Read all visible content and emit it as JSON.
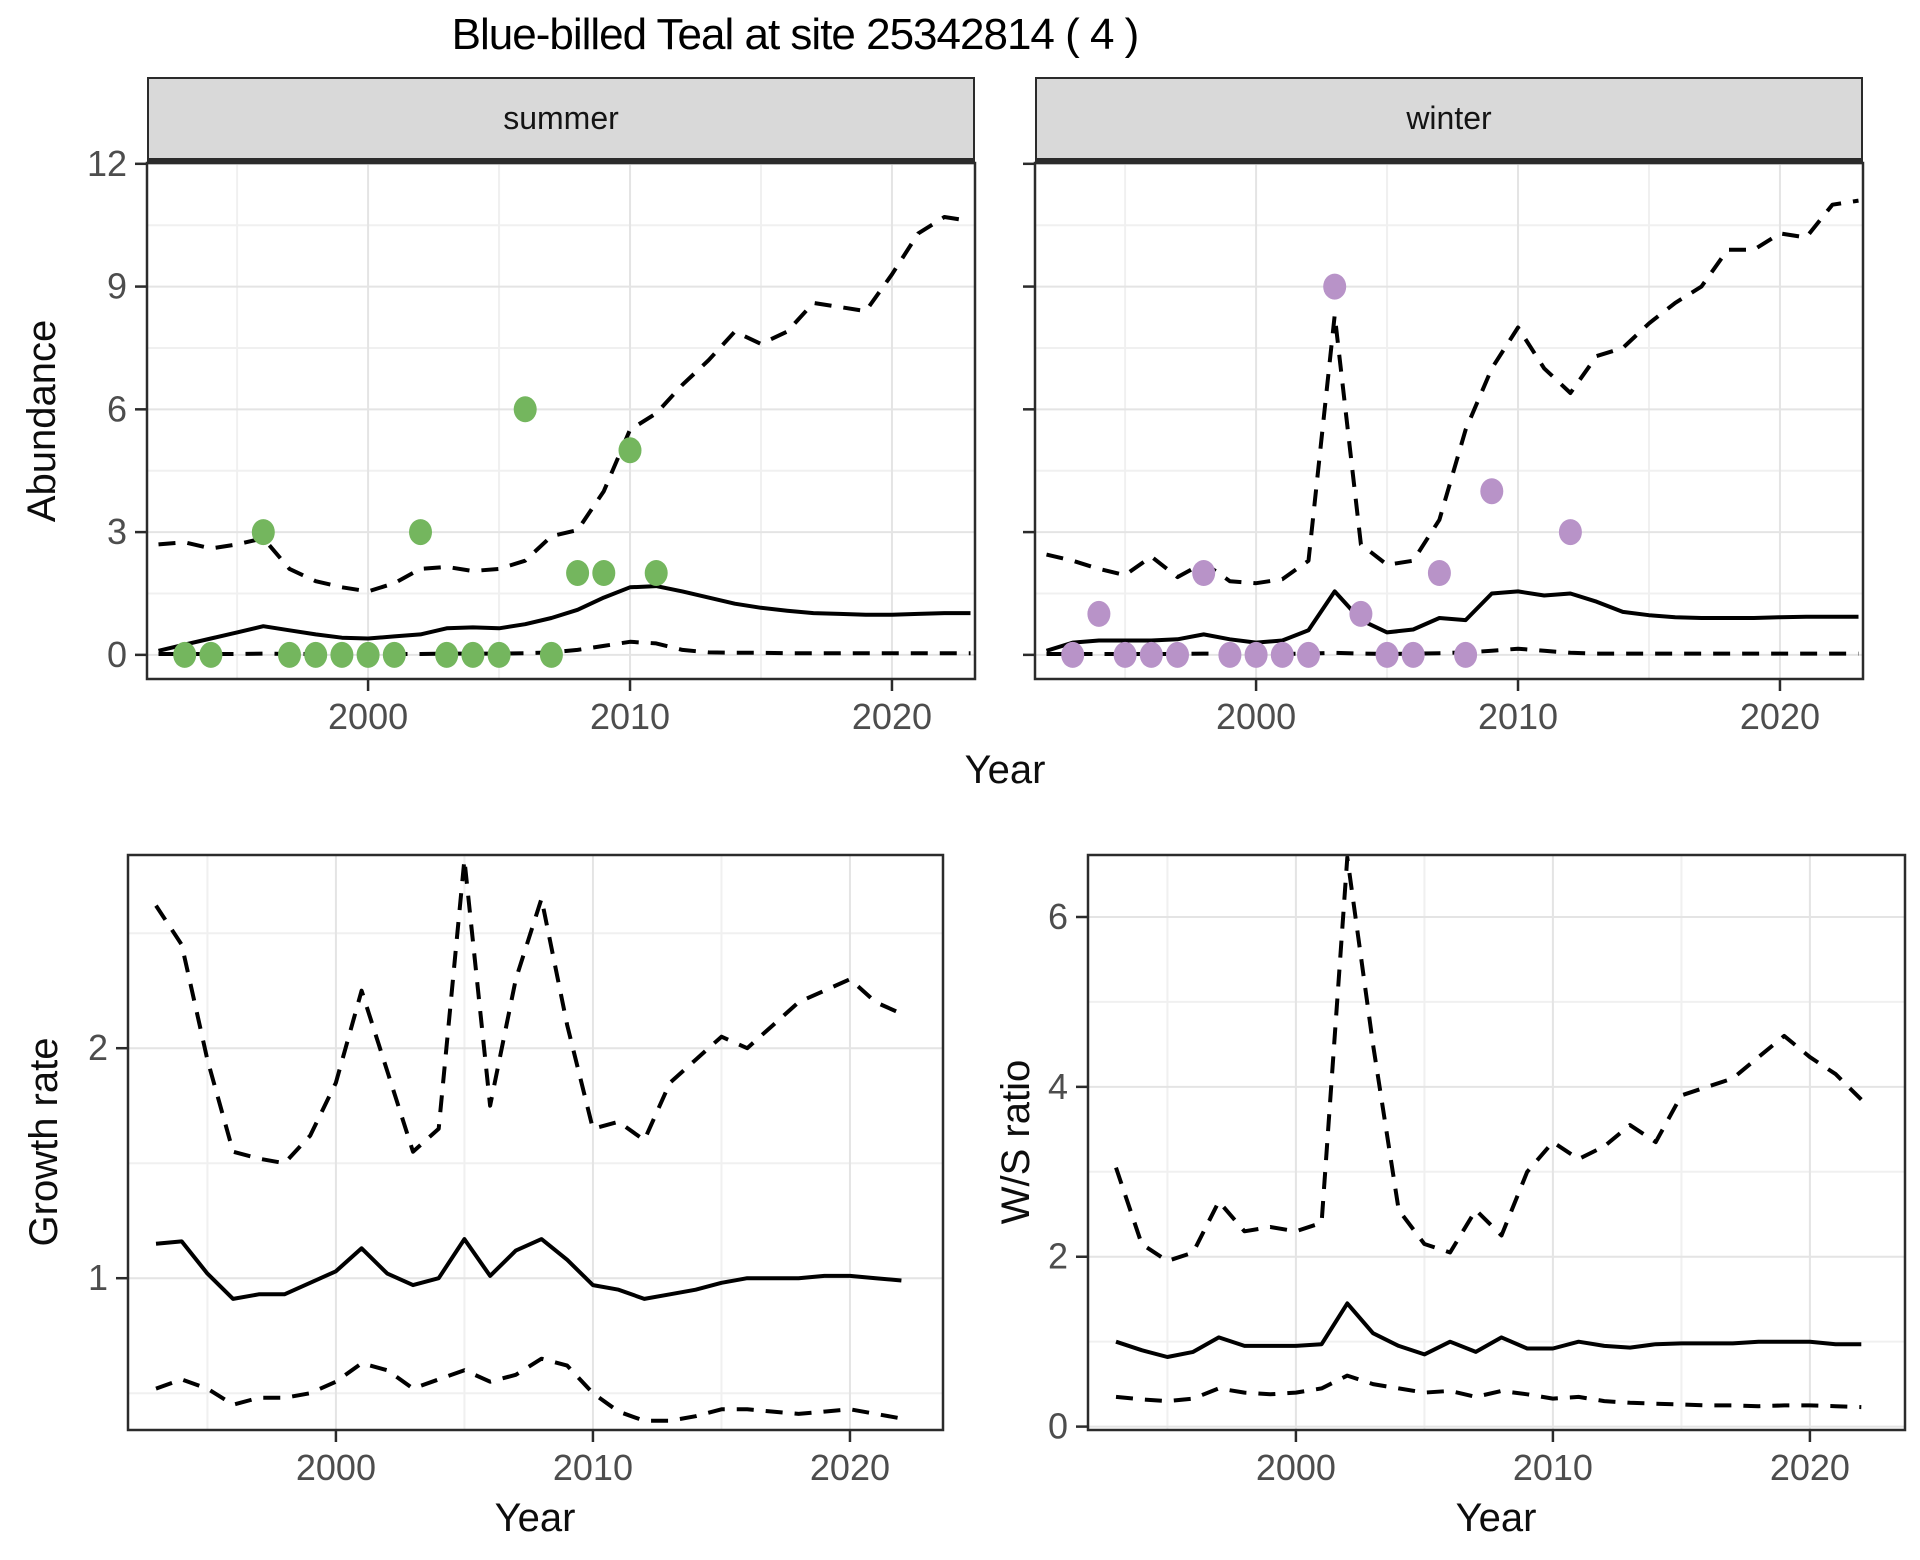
{
  "title": "Blue-billed Teal at site 25342814 ( 4 )",
  "colors": {
    "summer_point": "#74b65e",
    "winter_point": "#b893c8",
    "line": "#000000",
    "grid_major": "#e4e4e4",
    "grid_minor": "#f0f0f0",
    "panel_border": "#2b2b2b",
    "strip_bg": "#d9d9d9",
    "tick_label": "#4d4d4d"
  },
  "chart_data": [
    {
      "type": "line",
      "facet": "summer",
      "xlabel": "Year",
      "ylabel": "Abundance",
      "legend": "none",
      "grid": "on",
      "xlim": [
        1991.56,
        2023.17
      ],
      "ylim": [
        -0.59,
        12.02
      ],
      "xticks": [
        2000,
        2010,
        2020
      ],
      "xticks_minor": [
        1995,
        2005,
        2015
      ],
      "yticks": [
        0,
        3,
        6,
        9,
        12
      ],
      "yticks_minor": [
        1.5,
        4.5,
        7.5,
        10.5
      ],
      "x": [
        1992,
        1993,
        1994,
        1995,
        1996,
        1997,
        1998,
        1999,
        2000,
        2001,
        2002,
        2003,
        2004,
        2005,
        2006,
        2007,
        2008,
        2009,
        2010,
        2011,
        2012,
        2013,
        2014,
        2015,
        2016,
        2017,
        2018,
        2019,
        2020,
        2021,
        2022,
        2023
      ],
      "series": [
        {
          "name": "median",
          "style": "solid",
          "y": [
            0.1,
            0.25,
            0.4,
            0.55,
            0.7,
            0.6,
            0.5,
            0.42,
            0.4,
            0.45,
            0.5,
            0.65,
            0.67,
            0.65,
            0.75,
            0.9,
            1.1,
            1.4,
            1.65,
            1.68,
            1.55,
            1.4,
            1.25,
            1.15,
            1.08,
            1.02,
            1.0,
            0.98,
            0.98,
            1.0,
            1.02,
            1.02
          ]
        },
        {
          "name": "upper_ci",
          "style": "dashed",
          "y": [
            2.7,
            2.75,
            2.6,
            2.7,
            2.85,
            2.1,
            1.8,
            1.65,
            1.55,
            1.75,
            2.1,
            2.15,
            2.05,
            2.1,
            2.3,
            2.9,
            3.05,
            4.0,
            5.5,
            5.9,
            6.6,
            7.2,
            7.9,
            7.6,
            7.9,
            8.6,
            8.5,
            8.4,
            9.3,
            10.3,
            10.7,
            10.6
          ]
        },
        {
          "name": "lower_ci",
          "style": "dashed",
          "y": [
            0.02,
            0.02,
            0.02,
            0.02,
            0.03,
            0.02,
            0.02,
            0.02,
            0.02,
            0.02,
            0.02,
            0.03,
            0.03,
            0.03,
            0.04,
            0.06,
            0.12,
            0.22,
            0.32,
            0.28,
            0.12,
            0.06,
            0.05,
            0.05,
            0.04,
            0.04,
            0.04,
            0.04,
            0.04,
            0.04,
            0.04,
            0.04
          ]
        }
      ],
      "points": {
        "name": "observed-summer",
        "color": "#74b65e",
        "x": [
          1993,
          1994,
          1996,
          1997,
          1998,
          1999,
          2000,
          2001,
          2002,
          2003,
          2004,
          2005,
          2006,
          2007,
          2008,
          2009,
          2010,
          2011
        ],
        "y": [
          0,
          0,
          3,
          0,
          0,
          0,
          0,
          0,
          3,
          0,
          0,
          0,
          6,
          0,
          2,
          2,
          5,
          2
        ]
      }
    },
    {
      "type": "line",
      "facet": "winter",
      "xlabel": "Year",
      "ylabel": "Abundance",
      "legend": "none",
      "grid": "on",
      "xlim": [
        1991.56,
        2023.17
      ],
      "ylim": [
        -0.59,
        12.02
      ],
      "xticks": [
        2000,
        2010,
        2020
      ],
      "xticks_minor": [
        1995,
        2005,
        2015
      ],
      "yticks": [
        0,
        3,
        6,
        9,
        12
      ],
      "yticks_minor": [
        1.5,
        4.5,
        7.5,
        10.5
      ],
      "x": [
        1992,
        1993,
        1994,
        1995,
        1996,
        1997,
        1998,
        1999,
        2000,
        2001,
        2002,
        2003,
        2004,
        2005,
        2006,
        2007,
        2008,
        2009,
        2010,
        2011,
        2012,
        2013,
        2014,
        2015,
        2016,
        2017,
        2018,
        2019,
        2020,
        2021,
        2022,
        2023
      ],
      "series": [
        {
          "name": "median",
          "style": "solid",
          "y": [
            0.1,
            0.3,
            0.35,
            0.35,
            0.35,
            0.38,
            0.5,
            0.38,
            0.3,
            0.35,
            0.6,
            1.55,
            0.85,
            0.55,
            0.62,
            0.9,
            0.85,
            1.5,
            1.55,
            1.45,
            1.5,
            1.3,
            1.05,
            0.97,
            0.92,
            0.9,
            0.9,
            0.9,
            0.92,
            0.93,
            0.93,
            0.93
          ]
        },
        {
          "name": "upper_ci",
          "style": "dashed",
          "y": [
            2.45,
            2.3,
            2.1,
            1.95,
            2.4,
            1.9,
            2.25,
            1.8,
            1.75,
            1.85,
            2.3,
            8.3,
            2.7,
            2.2,
            2.3,
            3.3,
            5.5,
            7.0,
            8.0,
            7.0,
            6.4,
            7.3,
            7.5,
            8.1,
            8.6,
            9.0,
            9.9,
            9.9,
            10.3,
            10.2,
            11.0,
            11.1
          ]
        },
        {
          "name": "lower_ci",
          "style": "dashed",
          "y": [
            0.02,
            0.02,
            0.02,
            0.02,
            0.02,
            0.02,
            0.03,
            0.02,
            0.02,
            0.02,
            0.03,
            0.05,
            0.03,
            0.02,
            0.03,
            0.04,
            0.06,
            0.1,
            0.15,
            0.1,
            0.05,
            0.03,
            0.03,
            0.03,
            0.03,
            0.03,
            0.03,
            0.03,
            0.03,
            0.03,
            0.03,
            0.03
          ]
        }
      ],
      "points": {
        "name": "observed-winter",
        "color": "#b893c8",
        "x": [
          1993,
          1994,
          1995,
          1996,
          1997,
          1998,
          1999,
          2000,
          2001,
          2002,
          2003,
          2004,
          2005,
          2006,
          2007,
          2008,
          2009,
          2012
        ],
        "y": [
          0,
          1,
          0,
          0,
          0,
          2,
          0,
          0,
          0,
          0,
          9,
          1,
          0,
          0,
          2,
          0,
          4,
          3
        ]
      }
    },
    {
      "type": "line",
      "facet": "",
      "xlabel": "Year",
      "ylabel": "Growth rate",
      "legend": "none",
      "grid": "on",
      "xlim": [
        1991.91,
        2023.62
      ],
      "ylim": [
        0.34,
        2.84
      ],
      "xticks": [
        2000,
        2010,
        2020
      ],
      "xticks_minor": [
        1995,
        2005,
        2015
      ],
      "yticks": [
        1,
        2
      ],
      "yticks_minor": [
        0.5,
        1.5,
        2.5
      ],
      "x": [
        1993,
        1994,
        1995,
        1996,
        1997,
        1998,
        1999,
        2000,
        2001,
        2002,
        2003,
        2004,
        2005,
        2006,
        2007,
        2008,
        2009,
        2010,
        2011,
        2012,
        2013,
        2014,
        2015,
        2016,
        2017,
        2018,
        2019,
        2020,
        2021,
        2022
      ],
      "series": [
        {
          "name": "median",
          "style": "solid",
          "y": [
            1.15,
            1.16,
            1.02,
            0.91,
            0.93,
            0.93,
            0.98,
            1.03,
            1.13,
            1.02,
            0.97,
            1.0,
            1.17,
            1.01,
            1.12,
            1.17,
            1.08,
            0.97,
            0.95,
            0.91,
            0.93,
            0.95,
            0.98,
            1.0,
            1.0,
            1.0,
            1.01,
            1.01,
            1.0,
            0.99
          ]
        },
        {
          "name": "upper_ci",
          "style": "dashed",
          "y": [
            2.62,
            2.45,
            1.95,
            1.55,
            1.52,
            1.5,
            1.62,
            1.85,
            2.25,
            1.9,
            1.55,
            1.65,
            2.82,
            1.75,
            2.3,
            2.65,
            2.1,
            1.65,
            1.68,
            1.6,
            1.85,
            1.95,
            2.05,
            2.0,
            2.1,
            2.2,
            2.25,
            2.3,
            2.2,
            2.15
          ]
        },
        {
          "name": "lower_ci",
          "style": "dashed",
          "y": [
            0.52,
            0.56,
            0.52,
            0.45,
            0.48,
            0.48,
            0.5,
            0.55,
            0.63,
            0.6,
            0.52,
            0.56,
            0.6,
            0.55,
            0.58,
            0.65,
            0.62,
            0.5,
            0.42,
            0.38,
            0.38,
            0.4,
            0.43,
            0.43,
            0.42,
            0.41,
            0.42,
            0.43,
            0.41,
            0.39
          ]
        }
      ]
    },
    {
      "type": "line",
      "facet": "",
      "xlabel": "Year",
      "ylabel": "W/S ratio",
      "legend": "none",
      "grid": "on",
      "xlim": [
        1991.91,
        2023.7
      ],
      "ylim": [
        -0.04,
        6.73
      ],
      "xticks": [
        2000,
        2010,
        2020
      ],
      "xticks_minor": [
        1995,
        2005,
        2015
      ],
      "yticks": [
        0,
        2,
        4,
        6
      ],
      "yticks_minor": [
        1,
        3,
        5
      ],
      "x": [
        1993,
        1994,
        1995,
        1996,
        1997,
        1998,
        1999,
        2000,
        2001,
        2002,
        2003,
        2004,
        2005,
        2006,
        2007,
        2008,
        2009,
        2010,
        2011,
        2012,
        2013,
        2014,
        2015,
        2016,
        2017,
        2018,
        2019,
        2020,
        2021,
        2022
      ],
      "series": [
        {
          "name": "median",
          "style": "solid",
          "y": [
            1.0,
            0.9,
            0.82,
            0.88,
            1.05,
            0.95,
            0.95,
            0.95,
            0.97,
            1.45,
            1.1,
            0.95,
            0.85,
            1.0,
            0.88,
            1.05,
            0.92,
            0.92,
            1.0,
            0.95,
            0.93,
            0.97,
            0.98,
            0.98,
            0.98,
            1.0,
            1.0,
            1.0,
            0.97,
            0.97
          ]
        },
        {
          "name": "upper_ci",
          "style": "dashed",
          "y": [
            3.05,
            2.15,
            1.95,
            2.05,
            2.65,
            2.3,
            2.35,
            2.3,
            2.4,
            6.7,
            4.5,
            2.55,
            2.15,
            2.05,
            2.55,
            2.25,
            3.0,
            3.35,
            3.15,
            3.3,
            3.55,
            3.35,
            3.9,
            4.0,
            4.1,
            4.35,
            4.6,
            4.35,
            4.15,
            3.85
          ]
        },
        {
          "name": "lower_ci",
          "style": "dashed",
          "y": [
            0.35,
            0.32,
            0.3,
            0.33,
            0.45,
            0.4,
            0.38,
            0.4,
            0.45,
            0.6,
            0.5,
            0.45,
            0.4,
            0.42,
            0.35,
            0.42,
            0.38,
            0.33,
            0.35,
            0.3,
            0.28,
            0.27,
            0.26,
            0.25,
            0.25,
            0.24,
            0.25,
            0.25,
            0.24,
            0.23
          ]
        }
      ]
    }
  ]
}
